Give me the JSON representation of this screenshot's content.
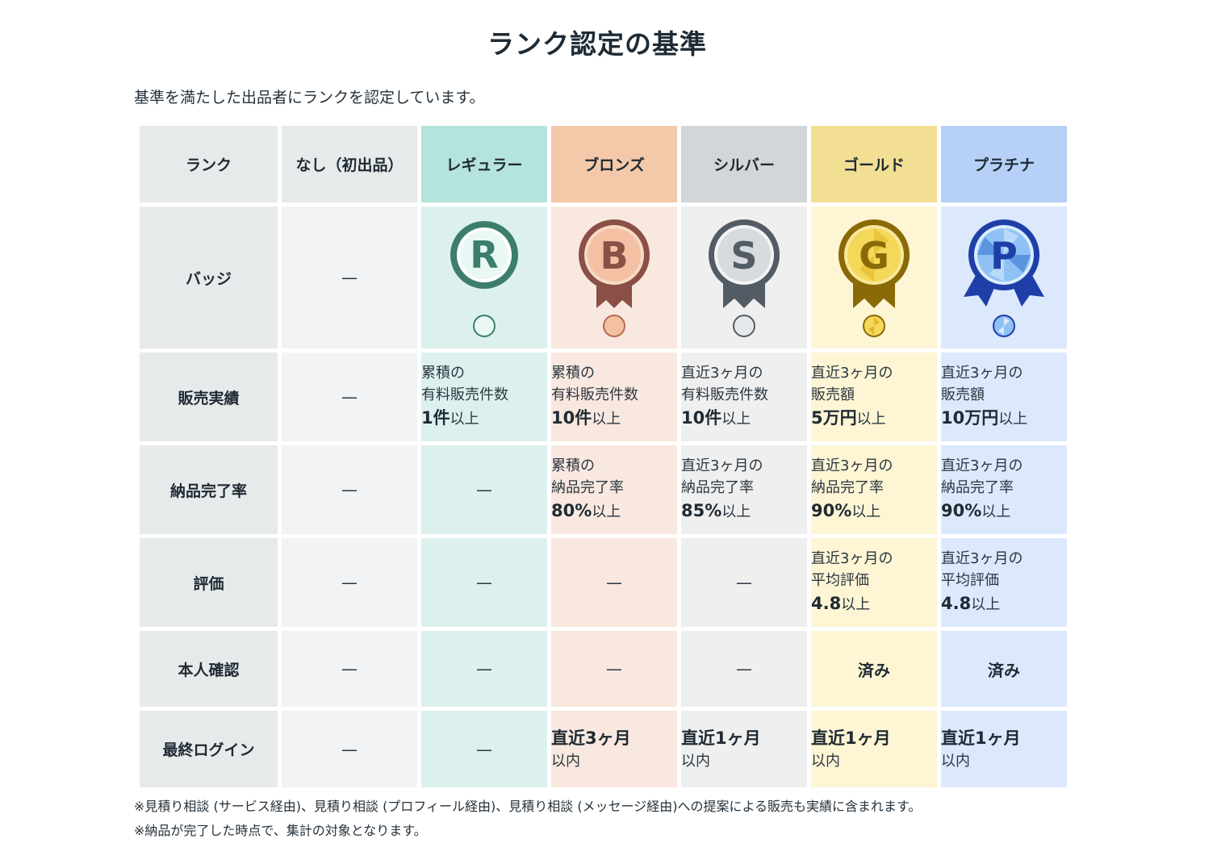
{
  "title": "ランク認定の基準",
  "intro": "基準を満たした出品者にランクを認定しています。",
  "columns": {
    "rank": "ランク",
    "none": "なし（初出品）",
    "regular": "レギュラー",
    "bronze": "ブロンズ",
    "silver": "シルバー",
    "gold": "ゴールド",
    "platinum": "プラチナ"
  },
  "dash": "—",
  "rows": {
    "badge": {
      "label": "バッジ"
    },
    "sales": {
      "label": "販売実績",
      "regular": {
        "l1": "累積の",
        "l2": "有料販売件数",
        "value": "1件",
        "unit": "以上"
      },
      "bronze": {
        "l1": "累積の",
        "l2": "有料販売件数",
        "value": "10件",
        "unit": "以上"
      },
      "silver": {
        "l1": "直近3ヶ月の",
        "l2": "有料販売件数",
        "value": "10件",
        "unit": "以上"
      },
      "gold": {
        "l1": "直近3ヶ月の",
        "l2": "販売額",
        "value": "5万円",
        "unit": "以上"
      },
      "platinum": {
        "l1": "直近3ヶ月の",
        "l2": "販売額",
        "value": "10万円",
        "unit": "以上"
      }
    },
    "delivery": {
      "label": "納品完了率",
      "bronze": {
        "l1": "累積の",
        "l2": "納品完了率",
        "value": "80%",
        "unit": "以上"
      },
      "silver": {
        "l1": "直近3ヶ月の",
        "l2": "納品完了率",
        "value": "85%",
        "unit": "以上"
      },
      "gold": {
        "l1": "直近3ヶ月の",
        "l2": "納品完了率",
        "value": "90%",
        "unit": "以上"
      },
      "platinum": {
        "l1": "直近3ヶ月の",
        "l2": "納品完了率",
        "value": "90%",
        "unit": "以上"
      }
    },
    "rating": {
      "label": "評価",
      "gold": {
        "l1": "直近3ヶ月の",
        "l2": "平均評価",
        "value": "4.8",
        "unit": "以上"
      },
      "platinum": {
        "l1": "直近3ヶ月の",
        "l2": "平均評価",
        "value": "4.8",
        "unit": "以上"
      }
    },
    "identity": {
      "label": "本人確認",
      "gold": "済み",
      "platinum": "済み"
    },
    "login": {
      "label": "最終ログイン",
      "bronze": {
        "main": "直近3ヶ月",
        "sub": "以内"
      },
      "silver": {
        "main": "直近1ヶ月",
        "sub": "以内"
      },
      "gold": {
        "main": "直近1ヶ月",
        "sub": "以内"
      },
      "platinum": {
        "main": "直近1ヶ月",
        "sub": "以内"
      }
    }
  },
  "badges": {
    "regular": {
      "letter": "R",
      "icon": "regular-badge-icon",
      "color": "#3d7d6b",
      "fill": "#e9f8f4"
    },
    "bronze": {
      "letter": "B",
      "icon": "bronze-badge-icon",
      "color": "#8a4f45",
      "fill": "#f3c0a4"
    },
    "silver": {
      "letter": "S",
      "icon": "silver-badge-icon",
      "color": "#535c64",
      "fill": "#e6e9eb"
    },
    "gold": {
      "letter": "G",
      "icon": "gold-badge-icon",
      "color": "#8a6a07",
      "fill": "#f4d85a"
    },
    "platinum": {
      "letter": "P",
      "icon": "platinum-badge-icon",
      "color": "#1f3fa8",
      "fill": "#8fc1f5"
    }
  },
  "notes": [
    "※見積り相談 (サービス経由)、見積り相談 (プロフィール経由)、見積り相談 (メッセージ経由)への提案による販売も実績に含まれます。",
    "※納品が完了した時点で、集計の対象となります。"
  ]
}
